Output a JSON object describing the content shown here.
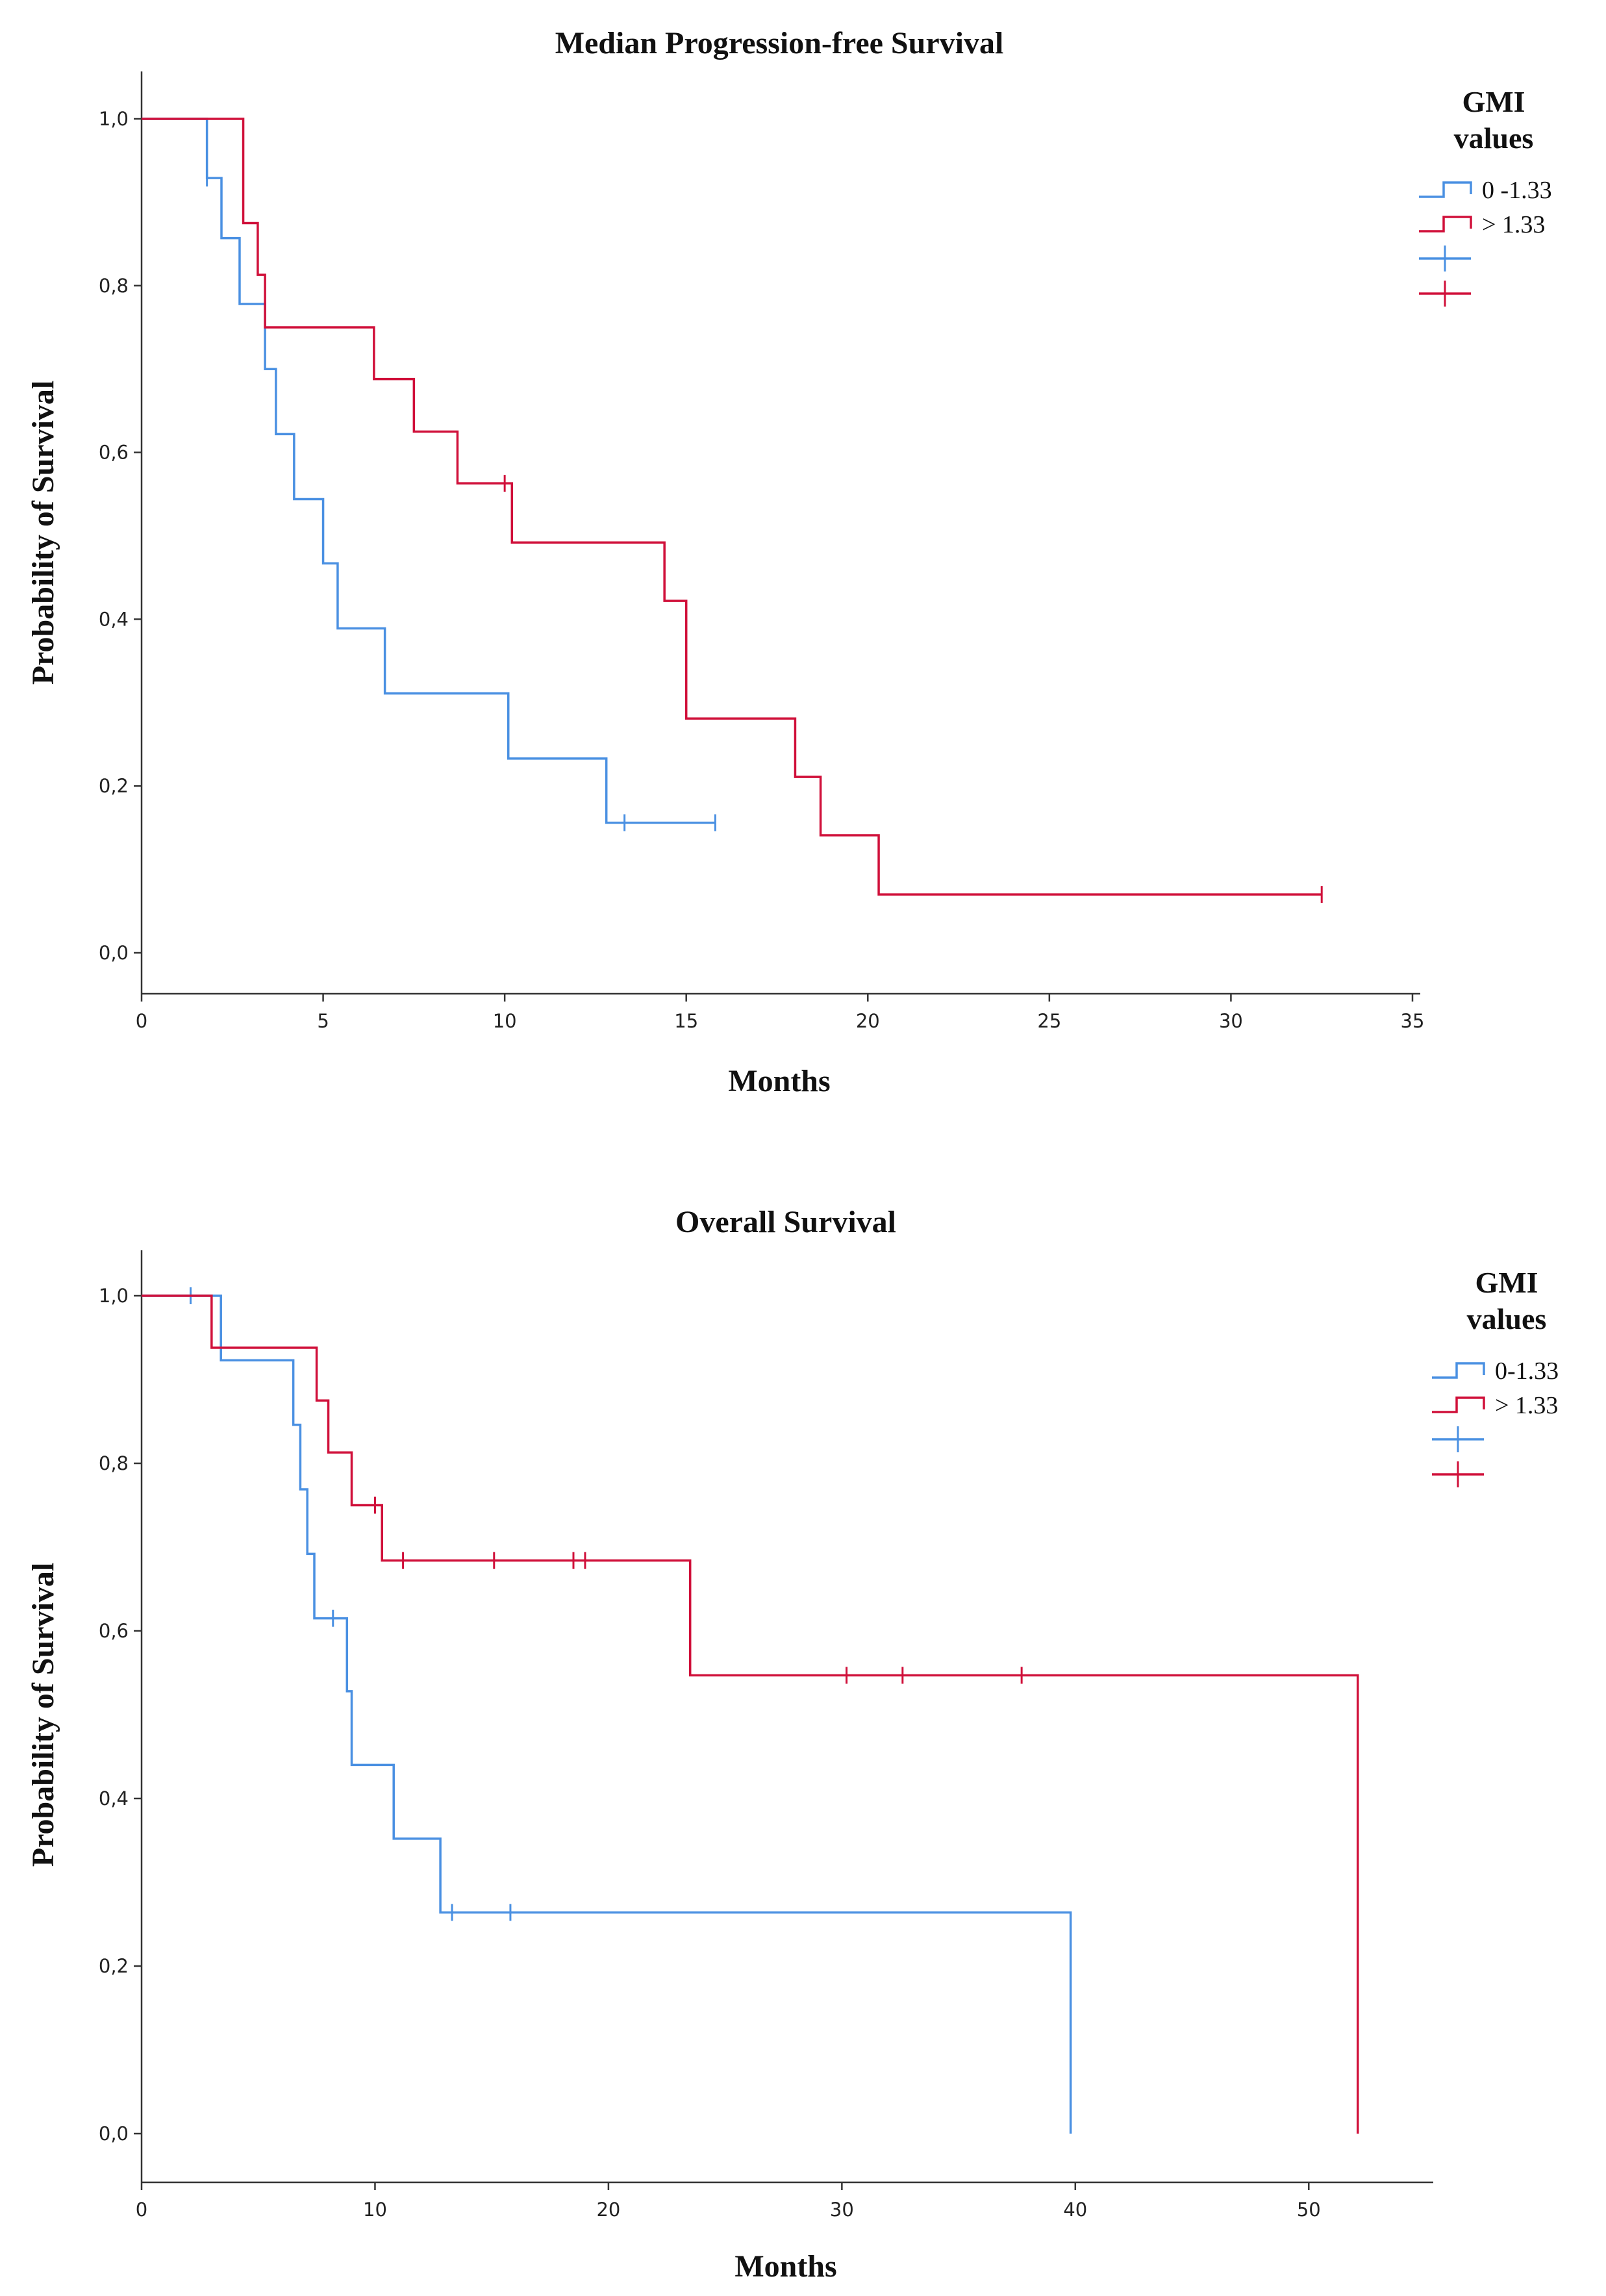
{
  "colors": {
    "group_low": "#4a90e2",
    "group_high": "#d0103a"
  },
  "chart_data": [
    {
      "type": "line",
      "subtype": "kaplan-meier",
      "title": "Median Progression-free Survival",
      "xlabel": "Months",
      "ylabel": "Probability of Survival",
      "xlim": [
        0,
        35
      ],
      "ylim": [
        0,
        1
      ],
      "xticks": [
        0,
        5,
        10,
        15,
        20,
        25,
        30,
        35
      ],
      "xtick_labels": [
        "0",
        "5",
        "10",
        "15",
        "20",
        "25",
        "30",
        "35"
      ],
      "yticks": [
        0,
        0.2,
        0.4,
        0.6,
        0.8,
        1.0
      ],
      "ytick_labels": [
        "0,0",
        "0,2",
        "0,4",
        "0,6",
        "0,8",
        "1,0"
      ],
      "legend": {
        "title_lines": [
          "GMI",
          "values"
        ],
        "entries": [
          "0 -1.33",
          "> 1.33",
          "",
          ""
        ],
        "position": "top-right"
      },
      "series": [
        {
          "name": "0 -1.33",
          "color_key": "group_low",
          "x": [
            0,
            1.8,
            2.2,
            2.7,
            3.4,
            3.7,
            4.2,
            5.0,
            5.4,
            6.7,
            10.1,
            12.8
          ],
          "y": [
            1.0,
            0.929,
            0.857,
            0.778,
            0.7,
            0.622,
            0.544,
            0.467,
            0.389,
            0.311,
            0.233,
            0.156
          ],
          "end_x": 15.8,
          "censor_x": [
            1.8,
            13.3,
            15.8
          ],
          "censor_y": [
            0.929,
            0.156,
            0.156
          ]
        },
        {
          "name": "> 1.33",
          "color_key": "group_high",
          "x": [
            0,
            2.8,
            3.2,
            3.4,
            6.4,
            7.5,
            8.7,
            10.2,
            14.4,
            15.0,
            18.0,
            18.7,
            20.3
          ],
          "y": [
            1.0,
            0.875,
            0.813,
            0.75,
            0.688,
            0.625,
            0.563,
            0.492,
            0.422,
            0.281,
            0.211,
            0.141,
            0.07
          ],
          "end_x": 32.5,
          "censor_x": [
            10.0,
            32.5
          ],
          "censor_y": [
            0.563,
            0.07
          ]
        }
      ]
    },
    {
      "type": "line",
      "subtype": "kaplan-meier",
      "title": "Overall Survival",
      "xlabel": "Months",
      "ylabel": "Probability of Survival",
      "xlim": [
        0,
        55
      ],
      "ylim": [
        0,
        1
      ],
      "xticks": [
        0,
        10,
        20,
        30,
        40,
        50
      ],
      "xtick_labels": [
        "0",
        "10",
        "20",
        "30",
        "40",
        "50"
      ],
      "yticks": [
        0,
        0.2,
        0.4,
        0.6,
        0.8,
        1.0
      ],
      "ytick_labels": [
        "0,0",
        "0,2",
        "0,4",
        "0,6",
        "0,8",
        "1,0"
      ],
      "legend": {
        "title_lines": [
          "GMI",
          "values"
        ],
        "entries": [
          "0-1.33",
          "> 1.33",
          "",
          ""
        ],
        "position": "top-right"
      },
      "series": [
        {
          "name": "0-1.33",
          "color_key": "group_low",
          "x": [
            0,
            3.4,
            6.5,
            6.8,
            7.1,
            7.4,
            8.8,
            9.0,
            10.8,
            12.8,
            39.8
          ],
          "y": [
            1.0,
            0.923,
            0.846,
            0.769,
            0.692,
            0.615,
            0.528,
            0.44,
            0.352,
            0.264,
            0.0
          ],
          "end_x": 39.8,
          "censor_x": [
            2.1,
            8.2,
            13.3,
            15.8
          ],
          "censor_y": [
            1.0,
            0.615,
            0.264,
            0.264
          ]
        },
        {
          "name": "> 1.33",
          "color_key": "group_high",
          "x": [
            0,
            3.0,
            7.5,
            8.0,
            9.0,
            10.3,
            23.5,
            52.1
          ],
          "y": [
            1.0,
            0.938,
            0.875,
            0.813,
            0.75,
            0.684,
            0.547,
            0.0
          ],
          "end_x": 52.1,
          "censor_x": [
            10.0,
            11.2,
            15.1,
            18.5,
            19.0,
            30.2,
            32.6,
            37.7
          ],
          "censor_y": [
            0.75,
            0.684,
            0.684,
            0.684,
            0.684,
            0.547,
            0.547,
            0.547
          ]
        }
      ]
    }
  ]
}
